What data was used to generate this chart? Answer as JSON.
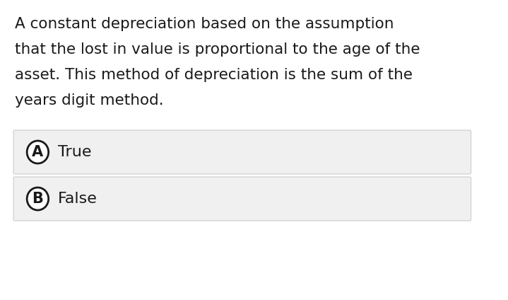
{
  "background_color": "#ffffff",
  "question_text_lines": [
    "A constant depreciation based on the assumption",
    "that the lost in value is proportional to the age of the",
    "asset. This method of depreciation is the sum of the",
    "years digit method."
  ],
  "options": [
    {
      "label": "A",
      "text": "True"
    },
    {
      "label": "B",
      "text": "False"
    }
  ],
  "option_bg_color": "#f0f0f0",
  "option_border_color": "#cccccc",
  "text_color": "#1a1a1a",
  "circle_edge_color": "#1a1a1a",
  "circle_fill_color": "#ffffff",
  "question_fontsize": 15.5,
  "option_fontsize": 16,
  "label_fontsize": 15
}
